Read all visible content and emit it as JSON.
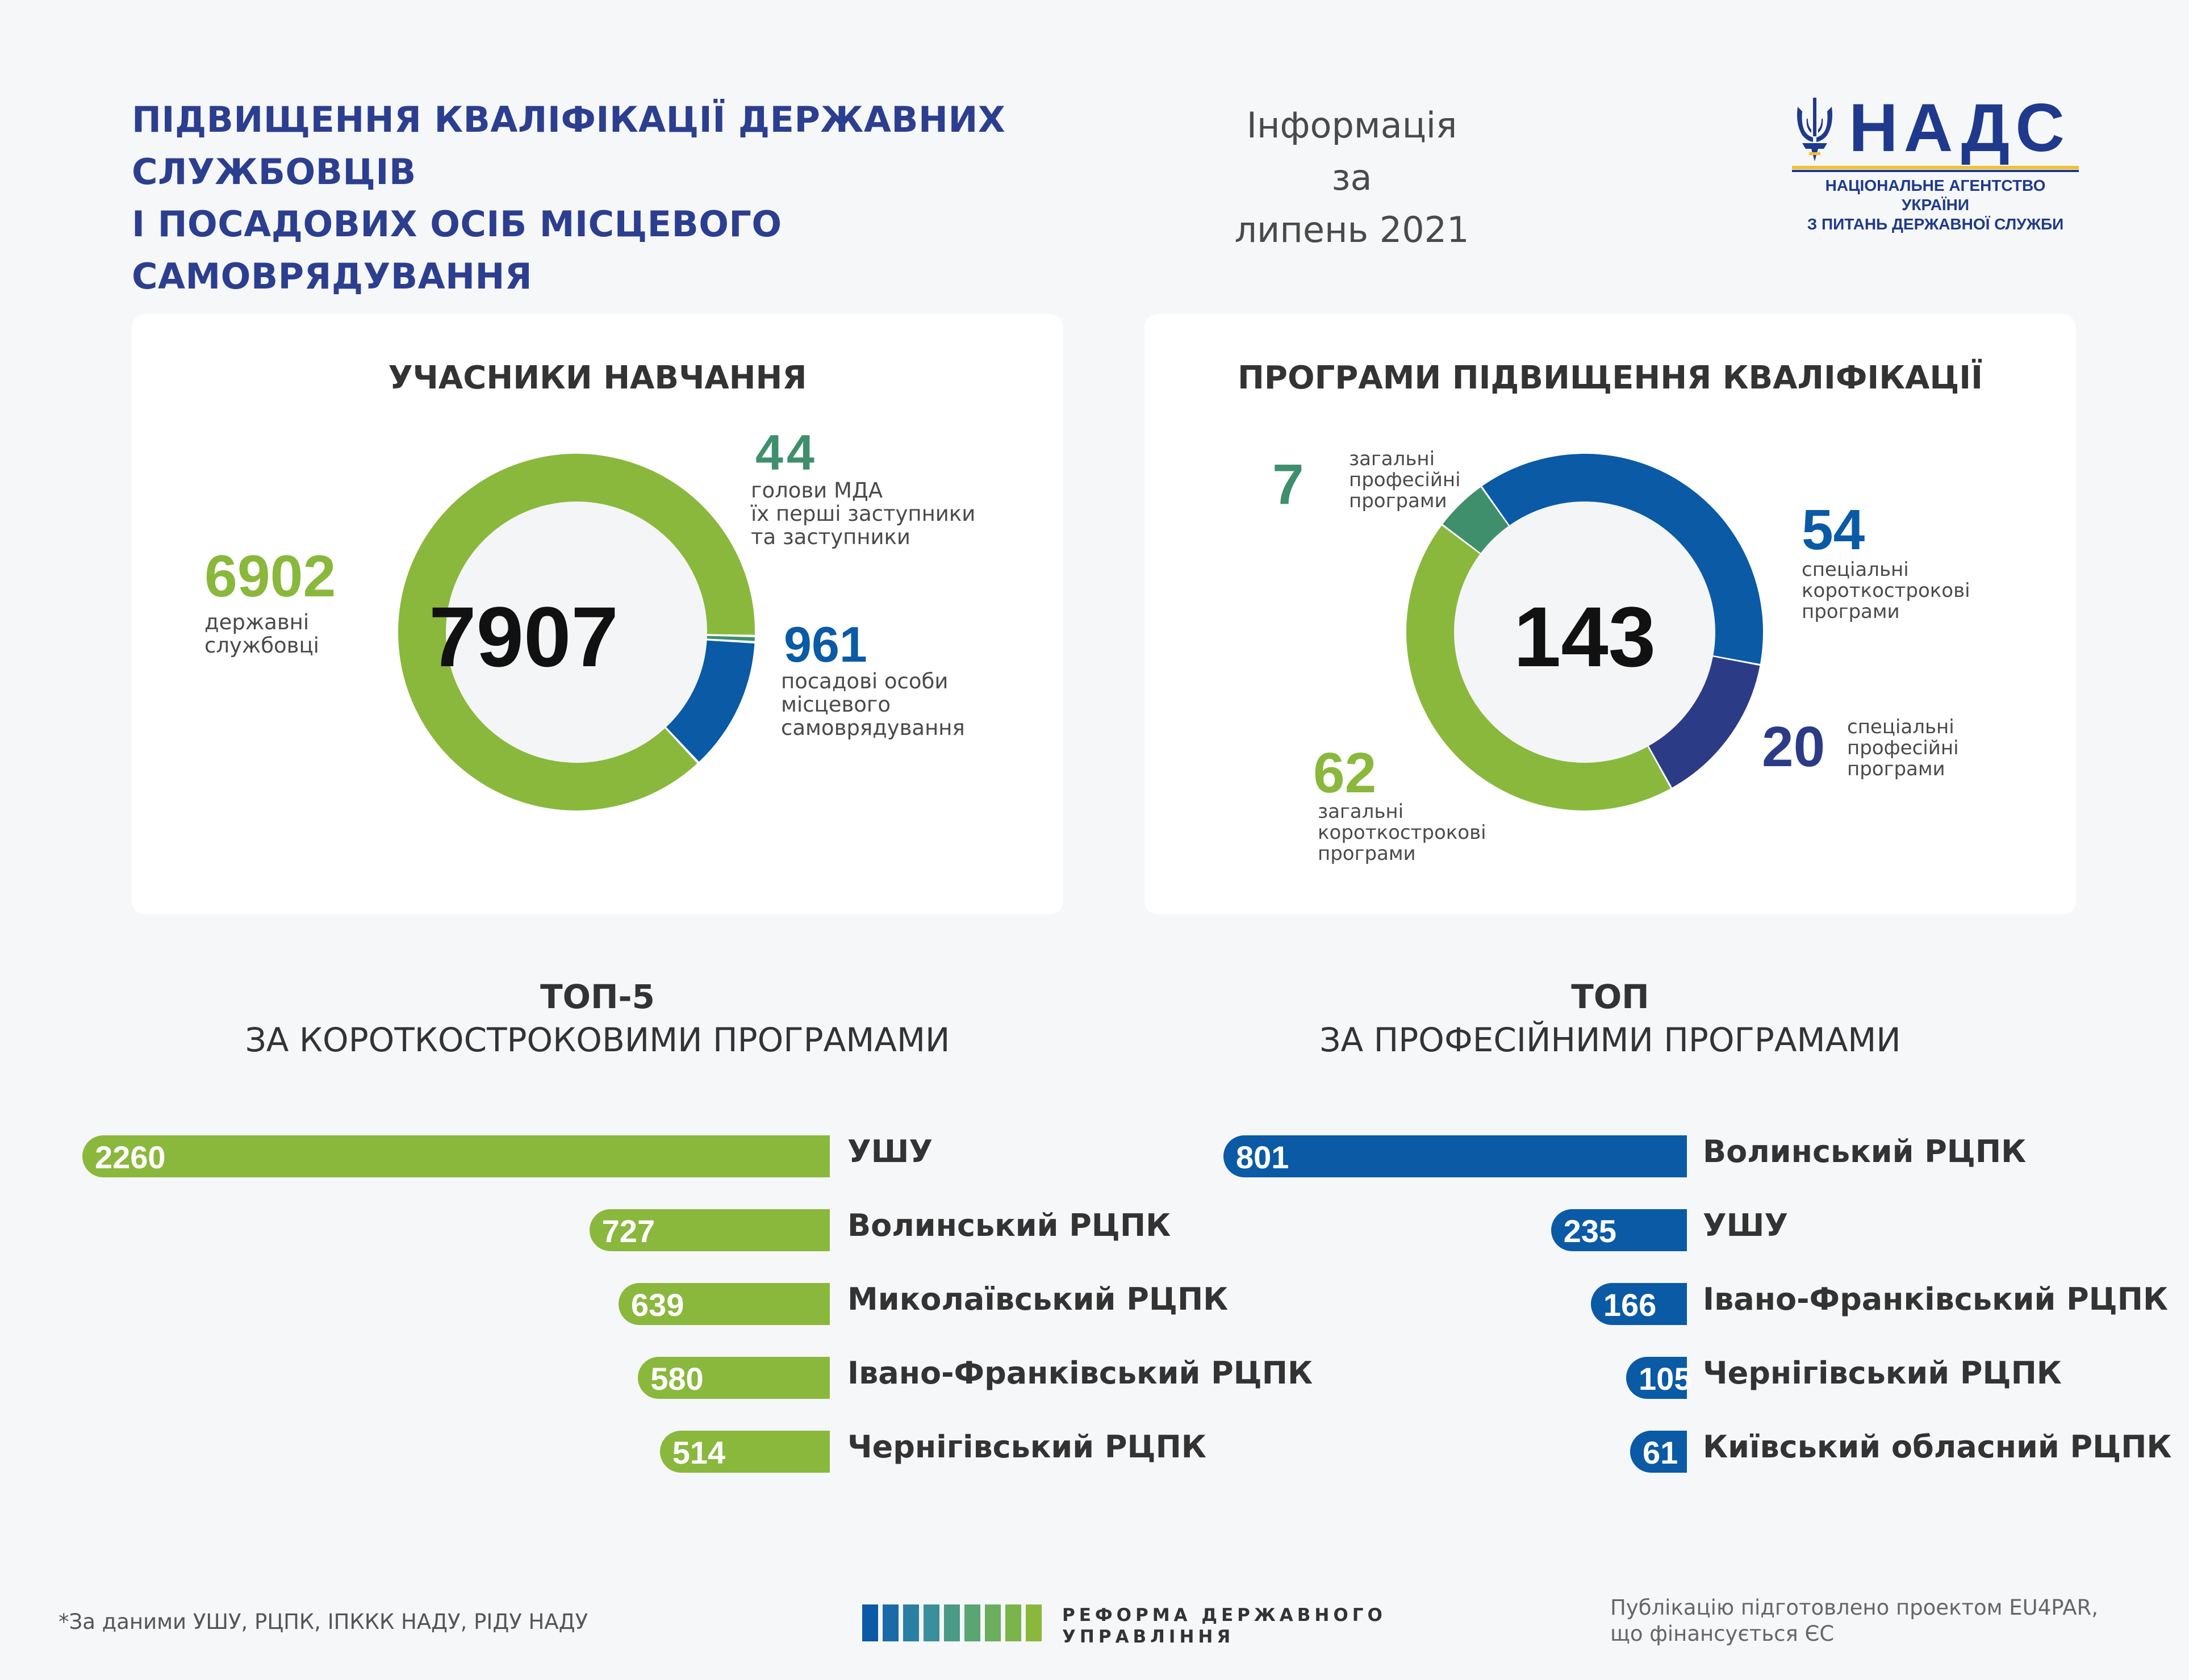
{
  "header": {
    "title_line1": "ПІДВИЩЕННЯ КВАЛІФІКАЦІЇ ДЕРЖАВНИХ СЛУЖБОВЦІВ",
    "title_line2": "І ПОСАДОВИХ ОСІБ МІСЦЕВОГО САМОВРЯДУВАННЯ",
    "info_line1": "Інформація за",
    "info_line2": "липень 2021"
  },
  "logo": {
    "word": "НАДС",
    "sub_line1": "НАЦІОНАЛЬНЕ АГЕНТСТВО УКРАЇНИ",
    "sub_line2": "З ПИТАНЬ ДЕРЖАВНОЇ СЛУЖБИ"
  },
  "colors": {
    "green": "#8ab83c",
    "teal": "#3f8f6d",
    "blue": "#0a5aa6",
    "navy": "#2c3b86",
    "title_blue": "#2c3e8f"
  },
  "chart_data": [
    {
      "type": "pie",
      "title": "УЧАСНИКИ НАВЧАННЯ",
      "total": "7907",
      "slices": [
        {
          "name": "державні службовці",
          "value": 6902,
          "value_text": "6902",
          "label": "державні\nслужбовці",
          "color": "#8ab83c"
        },
        {
          "name": "голови МДА їх перші заступники та заступники",
          "value": 44,
          "value_text": "44",
          "label": "голови МДА\n їх перші заступники\nта заступники",
          "color": "#3f8f6d"
        },
        {
          "name": "посадові особи місцевого самоврядування",
          "value": 961,
          "value_text": "961",
          "label": "посадові особи\nмісцевого\nсамоврядування",
          "color": "#0a5aa6"
        }
      ]
    },
    {
      "type": "pie",
      "title": "ПРОГРАМИ ПІДВИЩЕННЯ КВАЛІФІКАЦІЇ",
      "total": "143",
      "slices": [
        {
          "name": "загальні професійні програми",
          "value": 7,
          "value_text": "7",
          "label": "загальні\nпрофесійні\nпрограми",
          "color": "#3f8f6d"
        },
        {
          "name": "спеціальні короткострокові програми",
          "value": 54,
          "value_text": "54",
          "label": "спеціальні\nкороткострокові\nпрограми",
          "color": "#0a5aa6"
        },
        {
          "name": "спеціальні професійні програми",
          "value": 20,
          "value_text": "20",
          "label": "спеціальні\nпрофесійні\nпрограми",
          "color": "#2c3b86"
        },
        {
          "name": "загальні короткострокові програми",
          "value": 62,
          "value_text": "62",
          "label": "загальні\nкороткострокові\nпрограми",
          "color": "#8ab83c"
        }
      ]
    },
    {
      "type": "bar",
      "title_bold": "ТОП-5",
      "title_rest": "ЗА КОРОТКОСТРОКОВИМИ ПРОГРАМАМИ",
      "color": "#8ab83c",
      "categories": [
        "УШУ",
        "Волинський РЦПК",
        "Миколаївський РЦПК",
        "Івано-Франківський РЦПК",
        "Чернігівський РЦПК"
      ],
      "values": [
        2260,
        727,
        639,
        580,
        514
      ],
      "value_texts": [
        "2260",
        "727",
        "639",
        "580",
        "514"
      ]
    },
    {
      "type": "bar",
      "title_bold": "ТОП",
      "title_rest": "ЗА ПРОФЕСІЙНИМИ ПРОГРАМАМИ",
      "color": "#0a5aa6",
      "categories": [
        "Волинський РЦПК",
        "УШУ",
        "Івано-Франківський РЦПК",
        "Чернігівський РЦПК",
        "Київський обласний РЦПК"
      ],
      "values": [
        801,
        235,
        166,
        105,
        61
      ],
      "value_texts": [
        "801",
        "235",
        "166",
        "105",
        "61"
      ]
    }
  ],
  "footer": {
    "note": "*За даними УШУ, РЦПК, ІПККК НАДУ, РІДУ НАДУ",
    "reform_line1": "РЕФОРМА ДЕРЖАВНОГО",
    "reform_line2": "УПРАВЛІННЯ",
    "pub_line1": "Публікацію підготовлено проектом EU4PAR,",
    "pub_line2": "що фінансується ЄС",
    "stripe_colors": [
      "#0a5aa6",
      "#1a6aa8",
      "#2a7fa5",
      "#3a8f9a",
      "#4a9a86",
      "#5aa572",
      "#6aae5e",
      "#7ab54c",
      "#8ab83c"
    ]
  }
}
